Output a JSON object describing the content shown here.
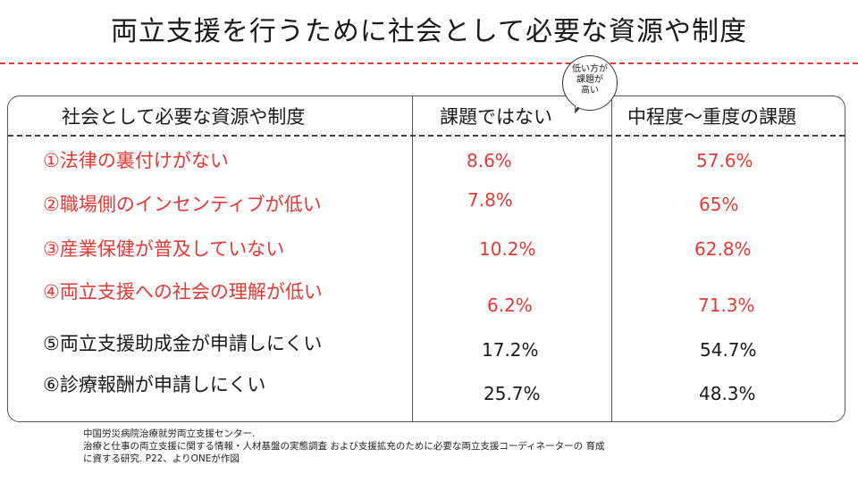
{
  "title": "両立支援を行うために社会として必要な資源や制度",
  "table": {
    "headers": {
      "item": "社会として必要な資源や制度",
      "col1": "課題ではない",
      "col2": "中程度〜重度の課題"
    },
    "rows": [
      {
        "label": "①法律の裏付けがない",
        "col1": "8.6%",
        "col2": "57.6%",
        "highlight": true
      },
      {
        "label": "②職場側のインセンティブが低い",
        "col1": "7.8%",
        "col2": "65%",
        "highlight": true
      },
      {
        "label": "③産業保健が普及していない",
        "col1": "10.2%",
        "col2": "62.8%",
        "highlight": true
      },
      {
        "label": "④両立支援への社会の理解が低い",
        "col1": "6.2%",
        "col2": "71.3%",
        "highlight": true
      },
      {
        "label": "⑤両立支援助成金が申請しにくい",
        "col1": "17.2%",
        "col2": "54.7%",
        "highlight": false
      },
      {
        "label": "⑥診療報酬が申請しにくい",
        "col1": "25.7%",
        "col2": "48.3%",
        "highlight": false
      }
    ]
  },
  "callout": {
    "line1": "低い方が",
    "line2": "課題が",
    "line3": "高い"
  },
  "source": {
    "line1": "中国労災病院治療就労両立支援センター.",
    "line2": "治療と仕事の両立支援に関する情報・人材基盤の実態調査 および支援拡充のために必要な両立支援コーディネーターの 育成",
    "line3": "に資する研究. P22、よりONEが作図"
  },
  "colors": {
    "highlight": "#e53935",
    "normal": "#1a1a1a",
    "divider": "#e53935"
  }
}
